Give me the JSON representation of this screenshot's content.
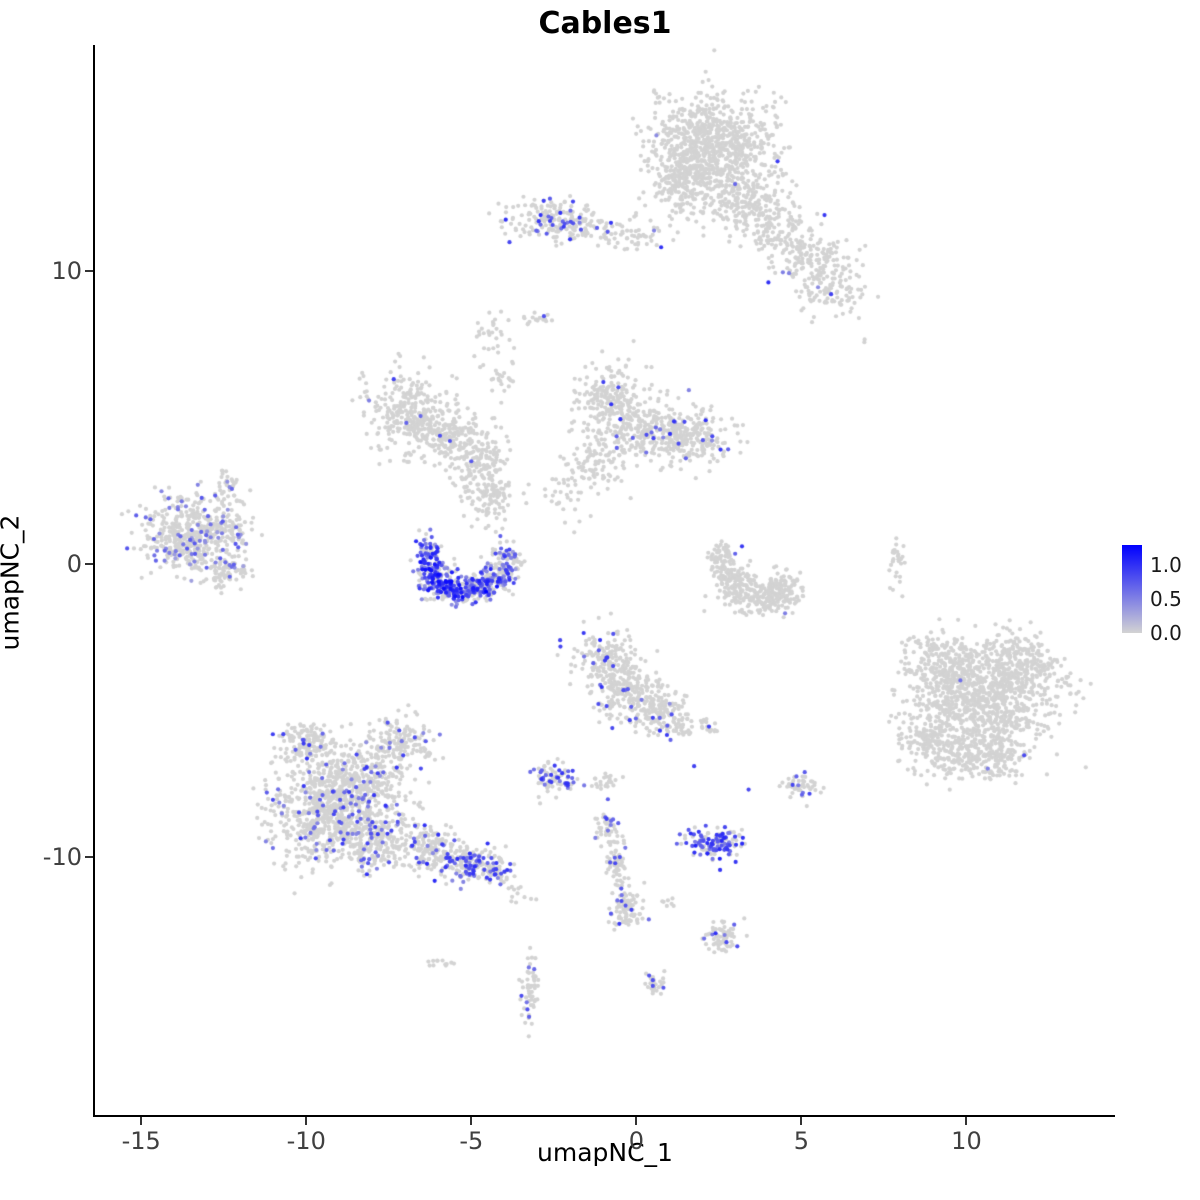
{
  "chart_data": {
    "type": "scatter",
    "title": "Cables1",
    "xlabel": "umapNC_1",
    "ylabel": "umapNC_2",
    "xlim": [
      -16.4,
      14.5
    ],
    "ylim": [
      -18.8,
      17.7
    ],
    "grid": "off",
    "legend_position": "right",
    "x_ticks": [
      {
        "value": -15,
        "label": "-15"
      },
      {
        "value": -10,
        "label": "-10"
      },
      {
        "value": -5,
        "label": "-5"
      },
      {
        "value": 0,
        "label": "0"
      },
      {
        "value": 5,
        "label": "5"
      },
      {
        "value": 10,
        "label": "10"
      }
    ],
    "y_ticks": [
      {
        "value": 10,
        "label": "10"
      },
      {
        "value": 0,
        "label": "0"
      },
      {
        "value": -10,
        "label": "-10"
      }
    ],
    "color_scale": {
      "low_color": "#d3d3d3",
      "high_color": "#0000ff",
      "min": 0.0,
      "max": 1.3,
      "legend_ticks": [
        {
          "value": 1.0,
          "label": "1.0"
        },
        {
          "value": 0.5,
          "label": "0.5"
        },
        {
          "value": 0.0,
          "label": "0.0"
        }
      ]
    },
    "point_radius_px": 2.1,
    "seed": 42,
    "clusters": [
      {
        "name": "top-main",
        "cx": 2.3,
        "cy": 14.2,
        "sx": 0.95,
        "sy": 0.85,
        "n": 850,
        "f": 0.004
      },
      {
        "name": "top-left-lobe",
        "cx": 1.3,
        "cy": 12.9,
        "sx": 0.5,
        "sy": 0.55,
        "n": 150,
        "f": 0.004
      },
      {
        "name": "top-tail",
        "cx": 3.2,
        "cy": 12.4,
        "sx": 0.65,
        "sy": 0.55,
        "n": 200,
        "f": 0.004
      },
      {
        "name": "top-tail2",
        "cx": 4.3,
        "cy": 11.4,
        "sx": 0.5,
        "sy": 0.45,
        "n": 110,
        "f": 0.004
      },
      {
        "name": "top-right",
        "cx": 5.3,
        "cy": 10.4,
        "sx": 0.55,
        "sy": 0.45,
        "n": 140,
        "f": 0.01
      },
      {
        "name": "top-right2",
        "cx": 5.9,
        "cy": 9.3,
        "sx": 0.5,
        "sy": 0.4,
        "n": 100,
        "f": 0.01
      },
      {
        "name": "upper-mid",
        "cx": -2.6,
        "cy": 11.7,
        "sx": 0.75,
        "sy": 0.35,
        "n": 170,
        "f": 0.12,
        "lo": 0.5,
        "hi": 1.0
      },
      {
        "name": "upper-mid-tail",
        "cx": -1.2,
        "cy": 11.4,
        "sx": 0.6,
        "sy": 0.3,
        "n": 60,
        "f": 0.05
      },
      {
        "name": "upper-mid-tail2",
        "cx": 0.3,
        "cy": 11.1,
        "sx": 0.4,
        "sy": 0.25,
        "n": 30,
        "f": 0.03
      },
      {
        "name": "small-dash",
        "cx": -2.95,
        "cy": 8.4,
        "sx": 0.3,
        "sy": 0.12,
        "n": 16,
        "f": 0.1,
        "lo": 0.6,
        "hi": 0.9
      },
      {
        "name": "small-streak-a",
        "cx": -4.4,
        "cy": 7.6,
        "sx": 0.3,
        "sy": 0.5,
        "n": 30,
        "f": 0
      },
      {
        "name": "small-streak-b",
        "cx": -4.05,
        "cy": 6.4,
        "sx": 0.2,
        "sy": 0.45,
        "n": 22,
        "f": 0
      },
      {
        "name": "lone-dots",
        "cx": 6.85,
        "cy": 7.6,
        "sx": 0.08,
        "sy": 0.08,
        "n": 2,
        "f": 0
      },
      {
        "name": "midleft-a",
        "cx": -7.0,
        "cy": 5.2,
        "sx": 0.6,
        "sy": 0.7,
        "n": 260,
        "f": 0.012
      },
      {
        "name": "midleft-b",
        "cx": -5.8,
        "cy": 4.5,
        "sx": 0.6,
        "sy": 0.5,
        "n": 190,
        "f": 0.012
      },
      {
        "name": "midleft-c",
        "cx": -4.8,
        "cy": 3.5,
        "sx": 0.45,
        "sy": 0.6,
        "n": 160,
        "f": 0.012
      },
      {
        "name": "midleft-d",
        "cx": -4.4,
        "cy": 2.3,
        "sx": 0.3,
        "sy": 0.45,
        "n": 90,
        "f": 0.01
      },
      {
        "name": "center-a",
        "cx": -0.8,
        "cy": 5.6,
        "sx": 0.5,
        "sy": 0.6,
        "n": 200,
        "f": 0.02,
        "lo": 0.5,
        "hi": 1.0
      },
      {
        "name": "center-b",
        "cx": 0.3,
        "cy": 4.6,
        "sx": 0.8,
        "sy": 0.55,
        "n": 260,
        "f": 0.02
      },
      {
        "name": "center-c",
        "cx": 1.7,
        "cy": 4.3,
        "sx": 0.65,
        "sy": 0.45,
        "n": 210,
        "f": 0.04
      },
      {
        "name": "center-tail",
        "cx": -1.2,
        "cy": 3.4,
        "sx": 0.5,
        "sy": 0.4,
        "n": 80,
        "f": 0.02
      },
      {
        "name": "center-sparse",
        "cx": -2.1,
        "cy": 2.2,
        "sx": 0.5,
        "sy": 0.5,
        "n": 35,
        "f": 0
      },
      {
        "name": "far-left",
        "cx": -13.6,
        "cy": 1.0,
        "sx": 0.7,
        "sy": 0.65,
        "n": 430,
        "f": 0.15,
        "lo": 0.3,
        "hi": 0.8
      },
      {
        "name": "far-left-prong-up",
        "cx": -12.3,
        "cy": 1.5,
        "sx": 0.4,
        "sy": 0.5,
        "n": 100,
        "f": 0.1,
        "lo": 0.3,
        "hi": 0.8
      },
      {
        "name": "far-left-prong-dn",
        "cx": -12.4,
        "cy": -0.2,
        "sx": 0.4,
        "sy": 0.3,
        "n": 80,
        "f": 0.08,
        "lo": 0.3,
        "hi": 0.8
      },
      {
        "name": "far-left-top",
        "cx": -12.4,
        "cy": 2.7,
        "sx": 0.2,
        "sy": 0.25,
        "n": 22,
        "f": 0.05
      },
      {
        "name": "crescent-1",
        "cx": -6.3,
        "cy": 0.3,
        "sx": 0.22,
        "sy": 0.35,
        "n": 90,
        "f": 0.55,
        "lo": 0.35,
        "hi": 1.2
      },
      {
        "name": "crescent-2",
        "cx": -6.05,
        "cy": -0.5,
        "sx": 0.28,
        "sy": 0.3,
        "n": 110,
        "f": 0.6,
        "lo": 0.35,
        "hi": 1.25
      },
      {
        "name": "crescent-3",
        "cx": -5.45,
        "cy": -0.9,
        "sx": 0.35,
        "sy": 0.22,
        "n": 130,
        "f": 0.6,
        "lo": 0.35,
        "hi": 1.25
      },
      {
        "name": "crescent-4",
        "cx": -4.8,
        "cy": -0.85,
        "sx": 0.32,
        "sy": 0.22,
        "n": 120,
        "f": 0.55,
        "lo": 0.3,
        "hi": 1.2
      },
      {
        "name": "crescent-5",
        "cx": -4.2,
        "cy": -0.45,
        "sx": 0.28,
        "sy": 0.28,
        "n": 100,
        "f": 0.45,
        "lo": 0.3,
        "hi": 1.1
      },
      {
        "name": "crescent-6",
        "cx": -3.9,
        "cy": 0.2,
        "sx": 0.22,
        "sy": 0.25,
        "n": 70,
        "f": 0.35,
        "lo": 0.3,
        "hi": 1.0
      },
      {
        "name": "right-crescent-1",
        "cx": 2.6,
        "cy": 0.15,
        "sx": 0.25,
        "sy": 0.3,
        "n": 70,
        "f": 0.01
      },
      {
        "name": "right-crescent-2",
        "cx": 3.0,
        "cy": -0.7,
        "sx": 0.35,
        "sy": 0.35,
        "n": 120,
        "f": 0.008
      },
      {
        "name": "right-crescent-3",
        "cx": 3.8,
        "cy": -1.2,
        "sx": 0.45,
        "sy": 0.28,
        "n": 140,
        "f": 0.008
      },
      {
        "name": "right-crescent-4",
        "cx": 4.5,
        "cy": -0.85,
        "sx": 0.3,
        "sy": 0.3,
        "n": 80,
        "f": 0.008
      },
      {
        "name": "small-vertical",
        "cx": 7.9,
        "cy": 0.1,
        "sx": 0.12,
        "sy": 0.45,
        "n": 30,
        "f": 0
      },
      {
        "name": "big-right-a",
        "cx": 10.6,
        "cy": -4.6,
        "sx": 1.05,
        "sy": 0.9,
        "n": 850,
        "f": 0.002
      },
      {
        "name": "big-right-b",
        "cx": 9.3,
        "cy": -3.5,
        "sx": 0.6,
        "sy": 0.55,
        "n": 240,
        "f": 0.002
      },
      {
        "name": "big-right-c",
        "cx": 11.6,
        "cy": -3.4,
        "sx": 0.6,
        "sy": 0.5,
        "n": 200,
        "f": 0.002
      },
      {
        "name": "big-right-d",
        "cx": 9.0,
        "cy": -6.1,
        "sx": 0.5,
        "sy": 0.5,
        "n": 170,
        "f": 0.002
      },
      {
        "name": "big-right-e",
        "cx": 10.6,
        "cy": -6.6,
        "sx": 0.7,
        "sy": 0.4,
        "n": 200,
        "f": 0.002
      },
      {
        "name": "center-low-a",
        "cx": -0.9,
        "cy": -3.2,
        "sx": 0.45,
        "sy": 0.45,
        "n": 150,
        "f": 0.05,
        "lo": 0.5,
        "hi": 1.0
      },
      {
        "name": "center-low-b",
        "cx": -0.3,
        "cy": -4.3,
        "sx": 0.55,
        "sy": 0.5,
        "n": 220,
        "f": 0.04,
        "lo": 0.5,
        "hi": 1.0
      },
      {
        "name": "center-low-c",
        "cx": 0.6,
        "cy": -5.0,
        "sx": 0.4,
        "sy": 0.35,
        "n": 120,
        "f": 0.04
      },
      {
        "name": "center-low-d",
        "cx": 1.2,
        "cy": -5.5,
        "sx": 0.25,
        "sy": 0.25,
        "n": 45,
        "f": 0.04
      },
      {
        "name": "center-low-e",
        "cx": 2.2,
        "cy": -5.6,
        "sx": 0.15,
        "sy": 0.15,
        "n": 18,
        "f": 0.05
      },
      {
        "name": "small-mid-low",
        "cx": -2.55,
        "cy": -7.3,
        "sx": 0.35,
        "sy": 0.3,
        "n": 85,
        "f": 0.3,
        "lo": 0.5,
        "hi": 1.0
      },
      {
        "name": "small-mid-low2",
        "cx": -0.9,
        "cy": -7.35,
        "sx": 0.25,
        "sy": 0.2,
        "n": 25,
        "f": 0.05
      },
      {
        "name": "botleft-a",
        "cx": -9.5,
        "cy": -8.5,
        "sx": 0.8,
        "sy": 0.9,
        "n": 580,
        "f": 0.1,
        "lo": 0.4,
        "hi": 1.0
      },
      {
        "name": "botleft-b",
        "cx": -8.3,
        "cy": -7.3,
        "sx": 0.7,
        "sy": 0.7,
        "n": 340,
        "f": 0.09,
        "lo": 0.4,
        "hi": 1.0
      },
      {
        "name": "botleft-c",
        "cx": -8.0,
        "cy": -9.3,
        "sx": 0.6,
        "sy": 0.6,
        "n": 290,
        "f": 0.09,
        "lo": 0.4,
        "hi": 1.0
      },
      {
        "name": "botleft-top",
        "cx": -9.9,
        "cy": -6.2,
        "sx": 0.45,
        "sy": 0.45,
        "n": 150,
        "f": 0.08,
        "lo": 0.4,
        "hi": 1.0
      },
      {
        "name": "botleft-top2",
        "cx": -7.2,
        "cy": -6.1,
        "sx": 0.5,
        "sy": 0.45,
        "n": 150,
        "f": 0.1,
        "lo": 0.4,
        "hi": 1.0
      },
      {
        "name": "botleft-arm",
        "cx": -6.3,
        "cy": -9.7,
        "sx": 0.5,
        "sy": 0.35,
        "n": 150,
        "f": 0.12,
        "lo": 0.4,
        "hi": 1.0
      },
      {
        "name": "botleft-armend",
        "cx": -5.2,
        "cy": -10.2,
        "sx": 0.5,
        "sy": 0.3,
        "n": 150,
        "f": 0.38,
        "lo": 0.45,
        "hi": 1.05
      },
      {
        "name": "botleft-tip",
        "cx": -4.3,
        "cy": -10.4,
        "sx": 0.3,
        "sy": 0.25,
        "n": 70,
        "f": 0.3,
        "lo": 0.45,
        "hi": 1.0
      },
      {
        "name": "botleft-straggle",
        "cx": -3.55,
        "cy": -11.2,
        "sx": 0.2,
        "sy": 0.25,
        "n": 12,
        "f": 0.05
      },
      {
        "name": "small-right-low",
        "cx": 4.95,
        "cy": -7.6,
        "sx": 0.28,
        "sy": 0.22,
        "n": 50,
        "f": 0.06,
        "lo": 0.5,
        "hi": 0.9
      },
      {
        "name": "purple-blob",
        "cx": 2.4,
        "cy": -9.5,
        "sx": 0.42,
        "sy": 0.28,
        "n": 130,
        "f": 0.55,
        "lo": 0.5,
        "hi": 1.1
      },
      {
        "name": "streak-a",
        "cx": -0.85,
        "cy": -9.0,
        "sx": 0.18,
        "sy": 0.3,
        "n": 45,
        "f": 0.08,
        "lo": 0.5,
        "hi": 1.0
      },
      {
        "name": "streak-b",
        "cx": -0.6,
        "cy": -10.2,
        "sx": 0.15,
        "sy": 0.45,
        "n": 55,
        "f": 0.08,
        "lo": 0.5,
        "hi": 1.0
      },
      {
        "name": "streak-c",
        "cx": -0.3,
        "cy": -11.8,
        "sx": 0.25,
        "sy": 0.4,
        "n": 90,
        "f": 0.06,
        "lo": 0.5,
        "hi": 1.0
      },
      {
        "name": "small-bot",
        "cx": 2.55,
        "cy": -12.7,
        "sx": 0.28,
        "sy": 0.28,
        "n": 65,
        "f": 0.06,
        "lo": 0.5,
        "hi": 1.0
      },
      {
        "name": "dots-bot",
        "cx": 1.0,
        "cy": -11.6,
        "sx": 0.12,
        "sy": 0.12,
        "n": 7,
        "f": 0
      },
      {
        "name": "blob-bot",
        "cx": 0.55,
        "cy": -14.3,
        "sx": 0.18,
        "sy": 0.2,
        "n": 28,
        "f": 0.07
      },
      {
        "name": "vstreak-bot",
        "cx": -3.2,
        "cy": -14.6,
        "sx": 0.13,
        "sy": 0.55,
        "n": 55,
        "f": 0.1,
        "lo": 0.5,
        "hi": 0.9
      },
      {
        "name": "dash-bot",
        "cx": -5.9,
        "cy": -13.6,
        "sx": 0.3,
        "sy": 0.1,
        "n": 12,
        "f": 0
      }
    ],
    "marked_points": [
      {
        "x": 5.7,
        "y": 11.9,
        "v": 0.95
      },
      {
        "x": 0.75,
        "y": 10.8,
        "v": 1.0
      },
      {
        "x": 4.0,
        "y": 9.6,
        "v": 1.0
      },
      {
        "x": 5.9,
        "y": 9.2,
        "v": 0.9
      },
      {
        "x": -2.9,
        "y": 11.9,
        "v": 1.0
      },
      {
        "x": -2.2,
        "y": 11.5,
        "v": 0.95
      },
      {
        "x": -2.8,
        "y": 8.45,
        "v": 0.8
      },
      {
        "x": -7.35,
        "y": 6.3,
        "v": 0.9
      },
      {
        "x": -1.0,
        "y": 6.2,
        "v": 0.9
      },
      {
        "x": -0.6,
        "y": 4.35,
        "v": 0.7
      },
      {
        "x": 2.1,
        "y": 4.9,
        "v": 1.0
      },
      {
        "x": 2.3,
        "y": 4.35,
        "v": 0.85
      },
      {
        "x": 2.55,
        "y": 3.9,
        "v": 0.95
      },
      {
        "x": 1.5,
        "y": 3.6,
        "v": 0.7
      },
      {
        "x": 0.3,
        "y": 3.8,
        "v": 0.6
      },
      {
        "x": -5.0,
        "y": 3.5,
        "v": 0.75
      },
      {
        "x": 3.2,
        "y": 0.6,
        "v": 0.95
      },
      {
        "x": -4.55,
        "y": -0.95,
        "v": 1.3
      },
      {
        "x": -4.5,
        "y": -0.6,
        "v": 1.1
      },
      {
        "x": -1.1,
        "y": -2.6,
        "v": 1.0
      },
      {
        "x": -0.95,
        "y": -3.3,
        "v": 0.9
      },
      {
        "x": -1.05,
        "y": -4.2,
        "v": 1.0
      },
      {
        "x": -0.9,
        "y": -4.85,
        "v": 0.85
      },
      {
        "x": 0.5,
        "y": -5.25,
        "v": 0.9
      },
      {
        "x": 2.2,
        "y": -5.55,
        "v": 0.9
      },
      {
        "x": 1.75,
        "y": -6.9,
        "v": 0.9
      },
      {
        "x": 3.4,
        "y": -7.7,
        "v": 0.85
      },
      {
        "x": 4.85,
        "y": -7.25,
        "v": 0.7
      },
      {
        "x": -0.9,
        "y": -8.7,
        "v": 0.9
      },
      {
        "x": -0.5,
        "y": -10.0,
        "v": 0.8
      },
      {
        "x": -0.45,
        "y": -11.5,
        "v": 0.85
      },
      {
        "x": 2.4,
        "y": -12.6,
        "v": 1.0
      },
      {
        "x": 0.5,
        "y": -14.2,
        "v": 0.8
      },
      {
        "x": -3.3,
        "y": -15.2,
        "v": 0.8
      },
      {
        "x": -3.25,
        "y": -15.45,
        "v": 0.7
      }
    ]
  }
}
